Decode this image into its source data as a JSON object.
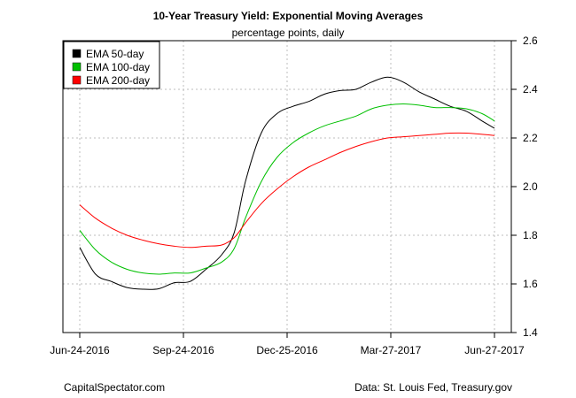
{
  "chart_data": {
    "type": "line",
    "title": "10-Year Treasury Yield: Exponential Moving Averages",
    "subtitle": "percentage points, daily",
    "ylim": [
      1.4,
      2.6
    ],
    "y_ticks": [
      "1.4",
      "1.6",
      "1.8",
      "2.0",
      "2.2",
      "2.4",
      "2.6"
    ],
    "x_ticks": [
      "Jun-24-2016",
      "Sep-24-2016",
      "Dec-25-2016",
      "Mar-27-2017",
      "Jun-27-2017"
    ],
    "grid": true,
    "legend_position": "top-left",
    "x_dates": [
      "2016-06-24",
      "2016-07-08",
      "2016-07-22",
      "2016-08-05",
      "2016-08-19",
      "2016-09-02",
      "2016-09-16",
      "2016-09-30",
      "2016-10-14",
      "2016-10-28",
      "2016-11-08",
      "2016-11-18",
      "2016-12-02",
      "2016-12-16",
      "2016-12-30",
      "2017-01-13",
      "2017-01-27",
      "2017-02-10",
      "2017-02-24",
      "2017-03-10",
      "2017-03-24",
      "2017-04-07",
      "2017-04-21",
      "2017-05-05",
      "2017-05-19",
      "2017-06-02",
      "2017-06-16",
      "2017-06-27"
    ],
    "series": [
      {
        "name": "EMA 50-day",
        "color": "#000000",
        "values": [
          1.75,
          1.64,
          1.61,
          1.585,
          1.578,
          1.58,
          1.605,
          1.61,
          1.66,
          1.72,
          1.81,
          2.02,
          2.22,
          2.3,
          2.33,
          2.35,
          2.38,
          2.395,
          2.4,
          2.43,
          2.45,
          2.43,
          2.39,
          2.36,
          2.33,
          2.31,
          2.27,
          2.24
        ]
      },
      {
        "name": "EMA 100-day",
        "color": "#00c000",
        "values": [
          1.82,
          1.74,
          1.69,
          1.66,
          1.645,
          1.64,
          1.645,
          1.645,
          1.665,
          1.69,
          1.745,
          1.87,
          2.02,
          2.12,
          2.18,
          2.22,
          2.25,
          2.27,
          2.29,
          2.32,
          2.335,
          2.34,
          2.335,
          2.325,
          2.325,
          2.32,
          2.3,
          2.27
        ]
      },
      {
        "name": "EMA 200-day",
        "color": "#ff0000",
        "values": [
          1.925,
          1.87,
          1.83,
          1.8,
          1.78,
          1.765,
          1.755,
          1.75,
          1.755,
          1.76,
          1.79,
          1.85,
          1.93,
          1.99,
          2.04,
          2.08,
          2.11,
          2.14,
          2.165,
          2.185,
          2.2,
          2.205,
          2.21,
          2.215,
          2.22,
          2.22,
          2.215,
          2.21
        ]
      }
    ]
  },
  "footer": {
    "left": "CapitalSpectator.com",
    "right": "Data: St. Louis Fed, Treasury.gov"
  }
}
